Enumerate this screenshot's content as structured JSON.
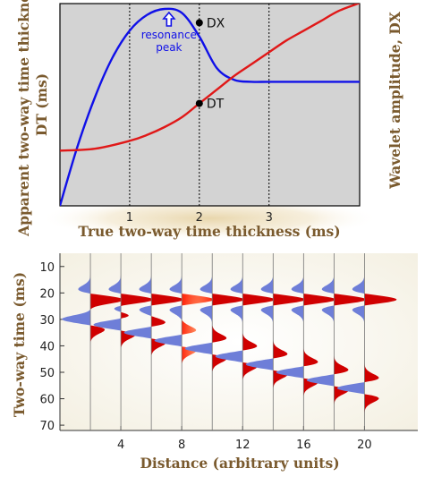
{
  "chart_data": [
    {
      "type": "line",
      "xlabel": "True two-way time thickness (ms)",
      "ylabel_left": "Apparent two-way time thickness, DT (ms)",
      "ylabel_right": "Wavelet amplitude, DX",
      "xlim": [
        0,
        4.3
      ],
      "x_ticks": [
        "1",
        "2",
        "3"
      ],
      "x_tick_values": [
        1,
        2,
        3
      ],
      "grid": "vertical dotted lines at ticks",
      "background": "#d3d3d3",
      "series": [
        {
          "name": "DX",
          "color": "#1010e8",
          "x": [
            0,
            0.25,
            0.5,
            0.75,
            1.0,
            1.25,
            1.5,
            1.75,
            2.0,
            2.25,
            2.5,
            2.75,
            3.0,
            3.5,
            4.0,
            4.3
          ],
          "y": [
            0,
            0.3,
            0.55,
            0.75,
            0.89,
            0.97,
            1.0,
            0.98,
            0.86,
            0.7,
            0.64,
            0.63,
            0.63,
            0.63,
            0.63,
            0.63
          ]
        },
        {
          "name": "DT",
          "color": "#e01818",
          "x": [
            0,
            0.5,
            1.0,
            1.25,
            1.5,
            1.75,
            2.0,
            2.25,
            2.5,
            2.75,
            3.0,
            3.25,
            3.5,
            3.75,
            4.0,
            4.3
          ],
          "y": [
            0.28,
            0.29,
            0.33,
            0.36,
            0.4,
            0.45,
            0.52,
            0.59,
            0.66,
            0.72,
            0.78,
            0.84,
            0.89,
            0.94,
            0.99,
            1.03
          ]
        }
      ],
      "annotations": [
        {
          "text": "DX",
          "x": 2.0,
          "y": 0.93
        },
        {
          "text": "DT",
          "x": 2.0,
          "y": 0.52
        },
        {
          "text": "resonance\npeak",
          "x": 1.5,
          "y": 1.0,
          "color": "#1010e8"
        }
      ]
    },
    {
      "type": "wiggle",
      "xlabel": "Distance (arbitrary units)",
      "ylabel": "Two-way time (ms)",
      "x_ticks": [
        "4",
        "8",
        "12",
        "16",
        "20"
      ],
      "x_tick_values": [
        4,
        8,
        12,
        16,
        20
      ],
      "y_ticks": [
        "10",
        "20",
        "30",
        "40",
        "50",
        "60",
        "70"
      ],
      "y_tick_values": [
        10,
        20,
        30,
        40,
        50,
        60,
        70
      ],
      "xlim": [
        0,
        23.5
      ],
      "ylim": [
        72,
        5
      ],
      "trace_positions": [
        2,
        4,
        6,
        8,
        10,
        12,
        14,
        16,
        18,
        20
      ],
      "top_reflection_ms": 22.5,
      "base_reflection_ms": [
        30,
        32,
        35,
        38,
        41,
        44,
        47,
        50,
        53,
        56
      ],
      "positive_color": "#d00000",
      "negative_color": "#6e7ed8",
      "highlighted_trace": 8
    }
  ]
}
